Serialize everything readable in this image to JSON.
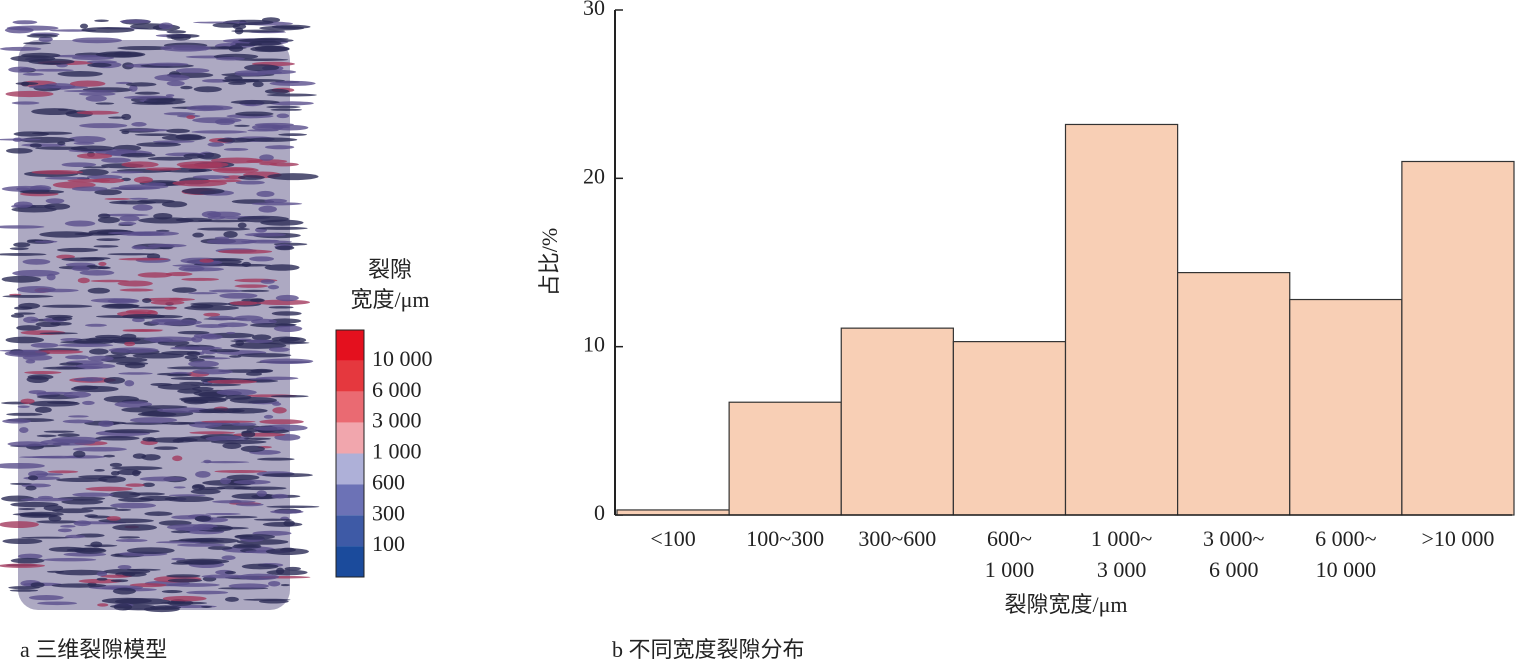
{
  "chart_data": {
    "type": "bar",
    "title": "b 不同宽度裂隙分布",
    "xlabel": "裂隙宽度/μm",
    "ylabel": "占比/%",
    "categories": [
      "<100",
      "100~300",
      "300~600",
      "600~\n1 000",
      "1 000~\n3 000",
      "3 000~\n6 000",
      "6 000~\n10 000",
      ">10 000"
    ],
    "values": [
      0.3,
      6.7,
      11.1,
      10.3,
      23.2,
      14.4,
      12.8,
      21.0
    ],
    "color": "#f8cfb5",
    "ylim": [
      0,
      30
    ],
    "yticks": [
      0,
      10,
      20,
      30
    ],
    "grid": false
  },
  "model_panel": {
    "caption": "a 三维裂隙模型",
    "colorbar": {
      "title": "裂隙\n宽度/μm",
      "labels": [
        "10 000",
        "6 000",
        "3 000",
        "1 000",
        "600",
        "300",
        "100"
      ],
      "colors": [
        "#e4101e",
        "#e5383e",
        "#ea6a72",
        "#f1a6ad",
        "#aeb0d8",
        "#6c72b6",
        "#3e5aa6",
        "#1b4b9c"
      ]
    }
  }
}
